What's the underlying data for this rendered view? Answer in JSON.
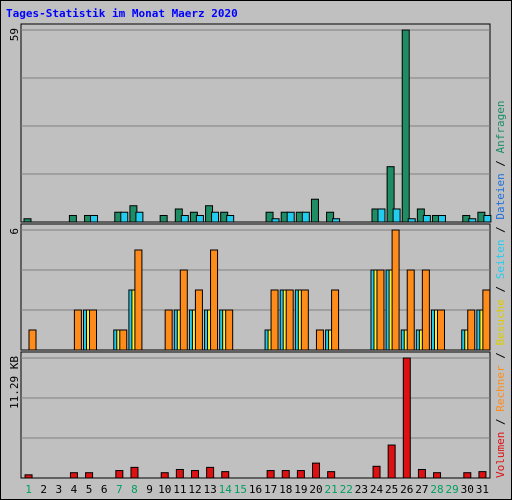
{
  "page_title": "Tages-Statistik im Monat Maerz 2020",
  "colors": {
    "background": "#C0C0C0",
    "plot_background": "#C0C0C0",
    "title": "#0000FF",
    "anfragen": "#1E8C64",
    "dateien": "#22CCEE",
    "seiten": "#22CCEE",
    "besuche": "#FFEE33",
    "rechner": "#FF8C1A",
    "volumen": "#DD1111",
    "day_black": "#000000",
    "day_green": "#00A060"
  },
  "chart_data": [
    {
      "type": "bar",
      "panel": "top",
      "ymax_label": "59",
      "ylim": [
        0,
        59
      ],
      "grid": true,
      "categories": [
        "1",
        "2",
        "3",
        "4",
        "5",
        "6",
        "7",
        "8",
        "9",
        "10",
        "11",
        "12",
        "13",
        "14",
        "15",
        "16",
        "17",
        "18",
        "19",
        "20",
        "21",
        "22",
        "23",
        "24",
        "25",
        "26",
        "27",
        "28",
        "29",
        "30",
        "31"
      ],
      "series": [
        {
          "name": "Anfragen",
          "values": [
            1,
            0,
            0,
            2,
            2,
            0,
            3,
            5,
            0,
            2,
            4,
            3,
            5,
            3,
            0,
            0,
            3,
            3,
            3,
            7,
            3,
            0,
            0,
            4,
            17,
            59,
            4,
            2,
            0,
            2,
            3
          ]
        },
        {
          "name": "Dateien",
          "values": [
            0,
            0,
            0,
            0,
            2,
            0,
            3,
            3,
            0,
            0,
            2,
            2,
            3,
            2,
            0,
            0,
            1,
            3,
            3,
            0,
            1,
            0,
            0,
            4,
            4,
            1,
            2,
            2,
            0,
            1,
            2
          ]
        }
      ],
      "legend_labels": [
        "Anfragen",
        "Dateien"
      ]
    },
    {
      "type": "bar",
      "panel": "middle",
      "ymax_label": "6",
      "ylim": [
        0,
        6
      ],
      "grid": true,
      "categories": [
        "1",
        "2",
        "3",
        "4",
        "5",
        "6",
        "7",
        "8",
        "9",
        "10",
        "11",
        "12",
        "13",
        "14",
        "15",
        "16",
        "17",
        "18",
        "19",
        "20",
        "21",
        "22",
        "23",
        "24",
        "25",
        "26",
        "27",
        "28",
        "29",
        "30",
        "31"
      ],
      "series": [
        {
          "name": "Seiten",
          "values": [
            0,
            0,
            0,
            0,
            2,
            0,
            1,
            3,
            0,
            0,
            2,
            2,
            2,
            2,
            0,
            0,
            1,
            3,
            3,
            0,
            1,
            0,
            0,
            4,
            4,
            1,
            1,
            2,
            0,
            1,
            2
          ]
        },
        {
          "name": "Besuche",
          "values": [
            0,
            0,
            0,
            0,
            2,
            0,
            1,
            3,
            0,
            0,
            2,
            2,
            2,
            2,
            0,
            0,
            1,
            3,
            3,
            0,
            1,
            0,
            0,
            4,
            4,
            1,
            1,
            2,
            0,
            1,
            2
          ]
        },
        {
          "name": "Rechner",
          "values": [
            1,
            0,
            0,
            2,
            2,
            0,
            1,
            5,
            0,
            2,
            4,
            3,
            5,
            2,
            0,
            0,
            3,
            3,
            3,
            1,
            3,
            0,
            0,
            4,
            6,
            4,
            4,
            2,
            0,
            2,
            3
          ]
        }
      ],
      "legend_labels": [
        "Seiten",
        "Besuche",
        "Rechner"
      ]
    },
    {
      "type": "bar",
      "panel": "bottom",
      "ymax_label": "11.29 KB",
      "ylim": [
        0,
        11.29
      ],
      "grid": true,
      "categories": [
        "1",
        "2",
        "3",
        "4",
        "5",
        "6",
        "7",
        "8",
        "9",
        "10",
        "11",
        "12",
        "13",
        "14",
        "15",
        "16",
        "17",
        "18",
        "19",
        "20",
        "21",
        "22",
        "23",
        "24",
        "25",
        "26",
        "27",
        "28",
        "29",
        "30",
        "31"
      ],
      "series": [
        {
          "name": "Volumen",
          "values": [
            0.3,
            0,
            0,
            0.5,
            0.5,
            0,
            0.7,
            1.0,
            0,
            0.5,
            0.8,
            0.7,
            1.0,
            0.6,
            0,
            0,
            0.7,
            0.7,
            0.7,
            1.4,
            0.6,
            0,
            0,
            1.1,
            3.1,
            11.29,
            0.8,
            0.5,
            0,
            0.5,
            0.6
          ]
        }
      ],
      "legend_labels": [
        "Volumen"
      ]
    }
  ],
  "x_labels": {
    "days": [
      "1",
      "2",
      "3",
      "4",
      "5",
      "6",
      "7",
      "8",
      "9",
      "10",
      "11",
      "12",
      "13",
      "14",
      "15",
      "16",
      "17",
      "18",
      "19",
      "20",
      "21",
      "22",
      "23",
      "24",
      "25",
      "26",
      "27",
      "28",
      "29",
      "30",
      "31"
    ],
    "weekend_days": [
      "1",
      "7",
      "8",
      "14",
      "15",
      "21",
      "22",
      "28",
      "29"
    ]
  },
  "right_legend": {
    "top": [
      {
        "text": "Anfragen",
        "color": "#1E8C64"
      },
      {
        "text": "Dateien",
        "color": "#1E6EDB"
      },
      {
        "text": "Seiten",
        "color": "#22CCEE"
      },
      {
        "text": "Besuche",
        "color": "#DDCC00"
      },
      {
        "text": "Rechner",
        "color": "#FF8C1A"
      },
      {
        "text": "Volumen",
        "color": "#DD1111"
      }
    ],
    "separator": " / "
  }
}
